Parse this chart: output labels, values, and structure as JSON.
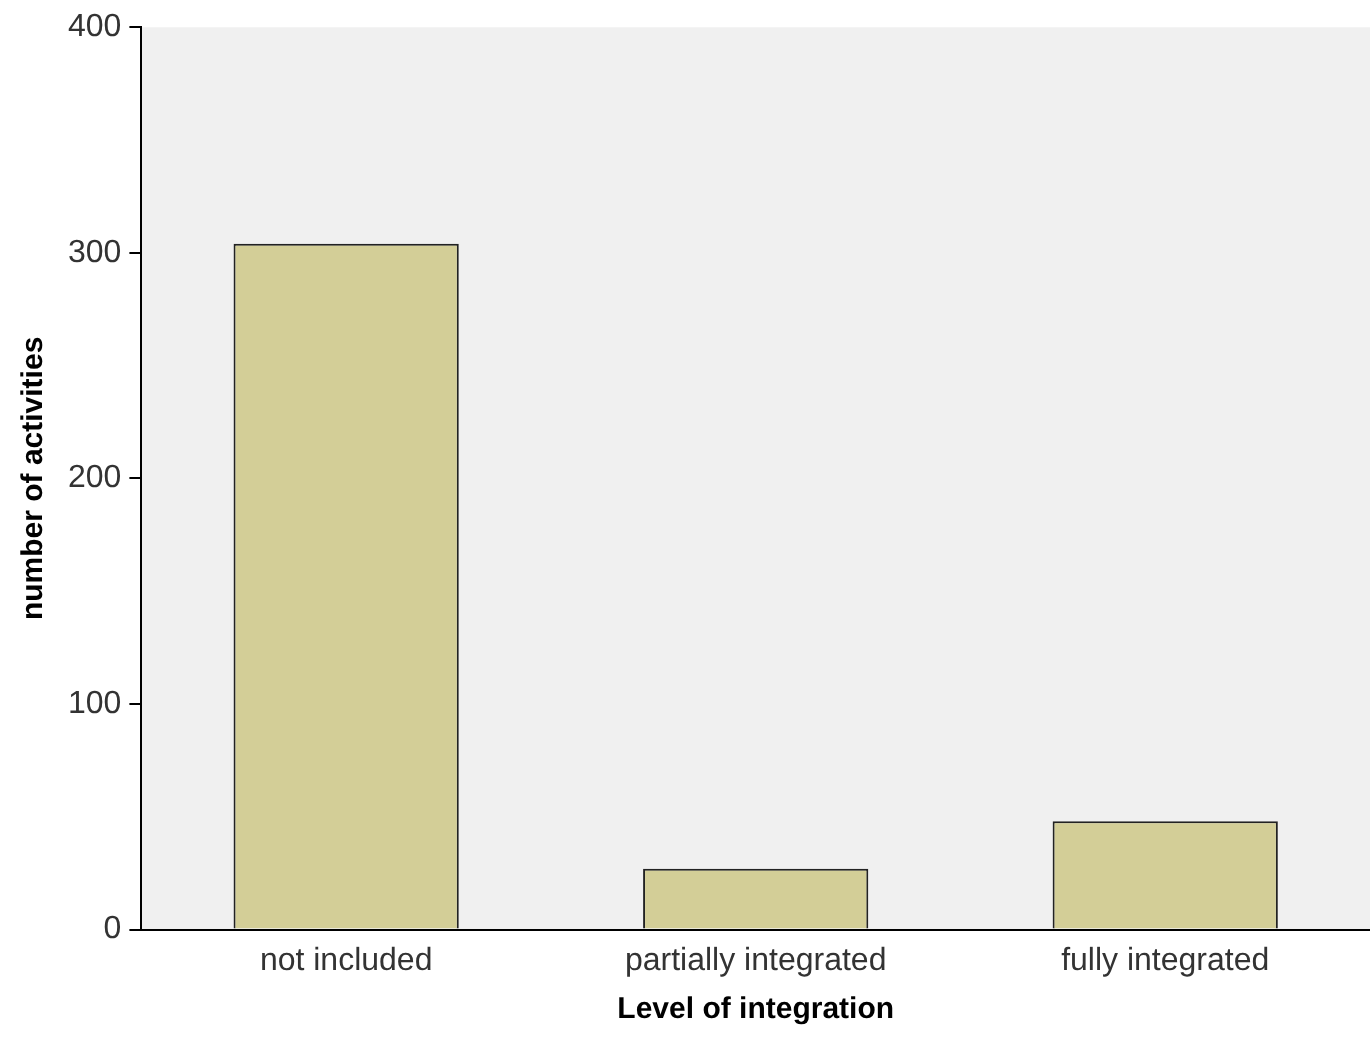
{
  "chart_data": {
    "type": "bar",
    "xlabel": "Level of integration",
    "ylabel": "number of activities",
    "categories": [
      "not included",
      "partially integrated",
      "fully integrated"
    ],
    "values": [
      304,
      27,
      48
    ],
    "color": "#d3ce97",
    "ylim": [
      0,
      400
    ],
    "yticks": [
      0,
      100,
      200,
      300,
      400
    ],
    "grid": false,
    "legend": false
  }
}
